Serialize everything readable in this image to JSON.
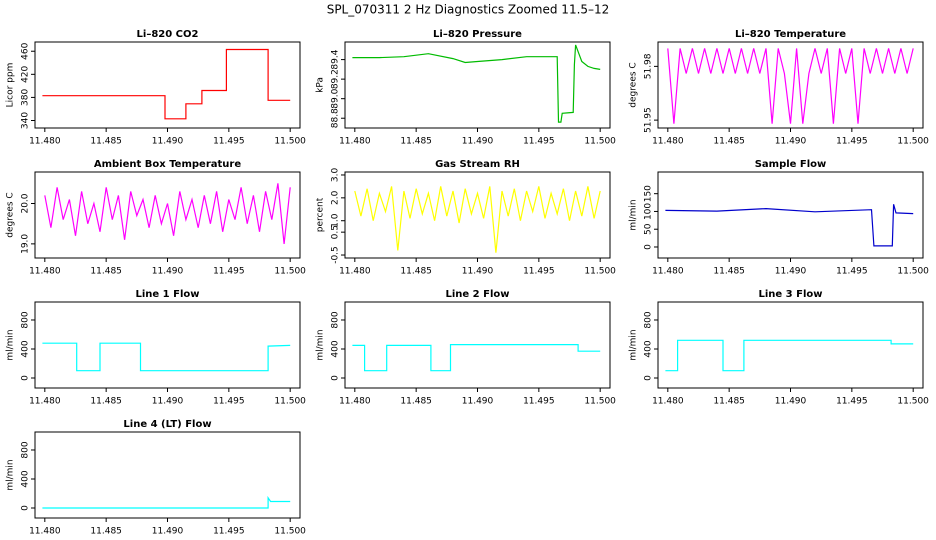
{
  "title": "SPL_070311  2 Hz Diagnostics Zoomed 11.5–12",
  "chart_data": [
    {
      "type": "line",
      "title": "Li–820 CO2",
      "y_label": "Licor ppm",
      "color": "#ff0000",
      "x": [
        11.4798,
        11.4898,
        11.4898,
        11.4915,
        11.4915,
        11.4928,
        11.4928,
        11.4948,
        11.4948,
        11.4982,
        11.4982,
        11.5
      ],
      "values": [
        383,
        383,
        343,
        343,
        369,
        369,
        392,
        392,
        463,
        463,
        375,
        375
      ],
      "xlim": [
        11.4792,
        11.5008
      ],
      "xticks": [
        {
          "value": 11.48,
          "label": "11.480"
        },
        11.485,
        {
          "value": 11.49,
          "label": "11.490"
        },
        11.495,
        {
          "value": 11.5,
          "label": "11.500"
        }
      ],
      "ylim": [
        327,
        476
      ],
      "yticks": [
        340,
        380,
        420,
        460
      ]
    },
    {
      "type": "line",
      "title": "Li–820 Pressure",
      "y_label": "kPa",
      "color": "#00bb00",
      "x": [
        11.4798,
        11.482,
        11.484,
        11.486,
        11.488,
        11.489,
        11.49,
        11.492,
        11.494,
        11.4965,
        11.4966,
        11.4968,
        11.4969,
        11.4978,
        11.4979,
        11.498,
        11.4985,
        11.499,
        11.4995,
        11.5
      ],
      "values": [
        89.42,
        89.42,
        89.43,
        89.46,
        89.41,
        89.37,
        89.38,
        89.4,
        89.43,
        89.43,
        88.76,
        88.76,
        88.85,
        88.86,
        89.35,
        89.55,
        89.38,
        89.33,
        89.31,
        89.3
      ],
      "xlim": [
        11.4792,
        11.5008
      ],
      "xticks": [
        {
          "value": 11.48,
          "label": "11.480"
        },
        11.485,
        {
          "value": 11.49,
          "label": "11.490"
        },
        11.495,
        {
          "value": 11.5,
          "label": "11.500"
        }
      ],
      "ylim": [
        88.7,
        89.58
      ],
      "yticks": [
        88.8,
        {
          "value": 89,
          "label": "89.0"
        },
        89.2,
        89.4
      ]
    },
    {
      "type": "line",
      "title": "Li–820 Temperature",
      "y_label": "degrees C",
      "color": "#ff00ff",
      "x": [
        11.48,
        11.4805,
        11.481,
        11.4815,
        11.482,
        11.4825,
        11.483,
        11.4835,
        11.484,
        11.4845,
        11.485,
        11.4855,
        11.486,
        11.4865,
        11.487,
        11.4875,
        11.488,
        11.4885,
        11.489,
        11.4895,
        11.49,
        11.4905,
        11.491,
        11.4915,
        11.492,
        11.4925,
        11.493,
        11.4935,
        11.494,
        11.4945,
        11.495,
        11.4955,
        11.496,
        11.4965,
        11.497,
        11.4975,
        11.498,
        11.4985,
        11.499,
        11.4995,
        11.5
      ],
      "values": [
        51.99,
        51.948,
        51.99,
        51.976,
        51.99,
        51.976,
        51.99,
        51.976,
        51.99,
        51.976,
        51.99,
        51.976,
        51.99,
        51.976,
        51.99,
        51.976,
        51.99,
        51.948,
        51.99,
        51.976,
        51.948,
        51.99,
        51.948,
        51.976,
        51.99,
        51.976,
        51.99,
        51.948,
        51.99,
        51.976,
        51.99,
        51.948,
        51.99,
        51.976,
        51.99,
        51.976,
        51.99,
        51.976,
        51.99,
        51.976,
        51.99
      ],
      "xlim": [
        11.4792,
        11.5008
      ],
      "xticks": [
        {
          "value": 11.48,
          "label": "11.480"
        },
        11.485,
        {
          "value": 11.49,
          "label": "11.490"
        },
        11.495,
        {
          "value": 11.5,
          "label": "11.500"
        }
      ],
      "ylim": [
        51.9456,
        51.9936
      ],
      "yticks": [
        51.95,
        51.98
      ]
    },
    {
      "type": "line",
      "title": "Ambient Box Temperature",
      "y_label": "degrees C",
      "color": "#ff00ff",
      "x": [
        11.48,
        11.4805,
        11.481,
        11.4815,
        11.482,
        11.4825,
        11.483,
        11.4835,
        11.484,
        11.4845,
        11.485,
        11.4855,
        11.486,
        11.4865,
        11.487,
        11.4875,
        11.488,
        11.4885,
        11.489,
        11.4895,
        11.49,
        11.4905,
        11.491,
        11.4915,
        11.492,
        11.4925,
        11.493,
        11.4935,
        11.494,
        11.4945,
        11.495,
        11.4955,
        11.496,
        11.4965,
        11.497,
        11.4975,
        11.498,
        11.4985,
        11.499,
        11.4995,
        11.5
      ],
      "values": [
        20.2,
        19.4,
        20.4,
        19.6,
        20.1,
        19.2,
        20.3,
        19.5,
        20.0,
        19.3,
        20.4,
        19.6,
        20.2,
        19.1,
        20.3,
        19.7,
        20.1,
        19.4,
        20.2,
        19.5,
        20.0,
        19.2,
        20.3,
        19.6,
        20.1,
        19.4,
        20.2,
        19.5,
        20.3,
        19.3,
        20.1,
        19.6,
        20.4,
        19.5,
        20.2,
        19.3,
        20.3,
        19.6,
        20.5,
        19.0,
        20.4
      ],
      "xlim": [
        11.4792,
        11.5008
      ],
      "xticks": [
        {
          "value": 11.48,
          "label": "11.480"
        },
        11.485,
        {
          "value": 11.49,
          "label": "11.490"
        },
        11.495,
        {
          "value": 11.5,
          "label": "11.500"
        }
      ],
      "ylim": [
        18.65,
        20.78
      ],
      "yticks": [
        {
          "value": 19,
          "label": "19.0"
        },
        {
          "value": 20,
          "label": "20.0"
        }
      ]
    },
    {
      "type": "line",
      "title": "Gas Stream RH",
      "y_label": "percent",
      "color": "#ffff00",
      "x": [
        11.48,
        11.4805,
        11.481,
        11.4815,
        11.482,
        11.4825,
        11.483,
        11.4835,
        11.484,
        11.4845,
        11.485,
        11.4855,
        11.486,
        11.4865,
        11.487,
        11.4875,
        11.488,
        11.4885,
        11.489,
        11.4895,
        11.49,
        11.4905,
        11.491,
        11.4915,
        11.492,
        11.4925,
        11.493,
        11.4935,
        11.494,
        11.4945,
        11.495,
        11.4955,
        11.496,
        11.4965,
        11.497,
        11.4975,
        11.498,
        11.4985,
        11.499,
        11.4995,
        11.5
      ],
      "values": [
        2.3,
        1.2,
        2.4,
        1.0,
        2.2,
        1.4,
        2.5,
        -0.3,
        2.3,
        1.1,
        2.4,
        1.3,
        2.2,
        1.0,
        2.5,
        1.2,
        2.3,
        0.9,
        2.4,
        1.3,
        2.2,
        1.1,
        2.5,
        -0.4,
        2.3,
        1.2,
        2.4,
        1.0,
        2.3,
        1.4,
        2.5,
        1.1,
        2.2,
        1.3,
        2.4,
        1.0,
        2.3,
        1.2,
        2.5,
        1.1,
        2.3
      ],
      "xlim": [
        11.4792,
        11.5008
      ],
      "xticks": [
        {
          "value": 11.48,
          "label": "11.480"
        },
        11.485,
        {
          "value": 11.49,
          "label": "11.490"
        },
        11.495,
        {
          "value": 11.5,
          "label": "11.500"
        }
      ],
      "ylim": [
        -0.63,
        3.13
      ],
      "yticks": [
        -0.5,
        0.5,
        {
          "value": 1,
          "label": "1.0"
        },
        {
          "value": 2,
          "label": "2.0"
        },
        {
          "value": 3,
          "label": "3.0"
        }
      ]
    },
    {
      "type": "line",
      "title": "Sample Flow",
      "y_label": "ml/min",
      "color": "#0000cc",
      "x": [
        11.4798,
        11.484,
        11.488,
        11.492,
        11.4966,
        11.4968,
        11.4983,
        11.4984,
        11.4986,
        11.5
      ],
      "values": [
        103,
        101,
        108,
        99,
        105,
        3,
        3,
        120,
        96,
        94
      ],
      "xlim": [
        11.4792,
        11.5008
      ],
      "xticks": [
        {
          "value": 11.48,
          "label": "11.480"
        },
        11.485,
        {
          "value": 11.49,
          "label": "11.490"
        },
        11.495,
        {
          "value": 11.5,
          "label": "11.500"
        }
      ],
      "ylim": [
        -31,
        211
      ],
      "yticks": [
        0,
        50,
        100,
        150
      ]
    },
    {
      "type": "line",
      "title": "Line 1 Flow",
      "y_label": "ml/min",
      "color": "#00ffff",
      "x": [
        11.4798,
        11.4826,
        11.4826,
        11.4845,
        11.4845,
        11.4878,
        11.4878,
        11.4982,
        11.4982,
        11.5
      ],
      "values": [
        480,
        480,
        100,
        100,
        480,
        480,
        100,
        100,
        440,
        450
      ],
      "xlim": [
        11.4792,
        11.5008
      ],
      "xticks": [
        {
          "value": 11.48,
          "label": "11.480"
        },
        11.485,
        {
          "value": 11.49,
          "label": "11.490"
        },
        11.495,
        {
          "value": 11.5,
          "label": "11.500"
        }
      ],
      "ylim": [
        -138,
        1048
      ],
      "yticks": [
        0,
        400,
        800
      ]
    },
    {
      "type": "line",
      "title": "Line 2 Flow",
      "y_label": "ml/min",
      "color": "#00ffff",
      "x": [
        11.4798,
        11.4808,
        11.4808,
        11.4826,
        11.4826,
        11.4862,
        11.4862,
        11.4878,
        11.4878,
        11.4982,
        11.4982,
        11.5
      ],
      "values": [
        450,
        450,
        100,
        100,
        450,
        450,
        100,
        100,
        460,
        460,
        370,
        370
      ],
      "xlim": [
        11.4792,
        11.5008
      ],
      "xticks": [
        {
          "value": 11.48,
          "label": "11.480"
        },
        11.485,
        {
          "value": 11.49,
          "label": "11.490"
        },
        11.495,
        {
          "value": 11.5,
          "label": "11.500"
        }
      ],
      "ylim": [
        -138,
        1048
      ],
      "yticks": [
        0,
        400,
        800
      ]
    },
    {
      "type": "line",
      "title": "Line 3 Flow",
      "y_label": "ml/min",
      "color": "#00ffff",
      "x": [
        11.4798,
        11.4808,
        11.4808,
        11.4845,
        11.4845,
        11.4862,
        11.4862,
        11.4982,
        11.4982,
        11.5
      ],
      "values": [
        100,
        100,
        520,
        520,
        100,
        100,
        520,
        520,
        470,
        470
      ],
      "xlim": [
        11.4792,
        11.5008
      ],
      "xticks": [
        {
          "value": 11.48,
          "label": "11.480"
        },
        11.485,
        {
          "value": 11.49,
          "label": "11.490"
        },
        11.495,
        {
          "value": 11.5,
          "label": "11.500"
        }
      ],
      "ylim": [
        -138,
        1048
      ],
      "yticks": [
        0,
        400,
        800
      ]
    },
    {
      "type": "line",
      "title": "Line 4 (LT) Flow",
      "y_label": "ml/min",
      "color": "#00ffff",
      "x": [
        11.4798,
        11.4982,
        11.4982,
        11.4984,
        11.5
      ],
      "values": [
        0,
        0,
        140,
        90,
        90
      ],
      "xlim": [
        11.4792,
        11.5008
      ],
      "xticks": [
        {
          "value": 11.48,
          "label": "11.480"
        },
        11.485,
        {
          "value": 11.49,
          "label": "11.490"
        },
        11.495,
        {
          "value": 11.5,
          "label": "11.500"
        }
      ],
      "ylim": [
        -138,
        1048
      ],
      "yticks": [
        0,
        400,
        800
      ]
    }
  ]
}
